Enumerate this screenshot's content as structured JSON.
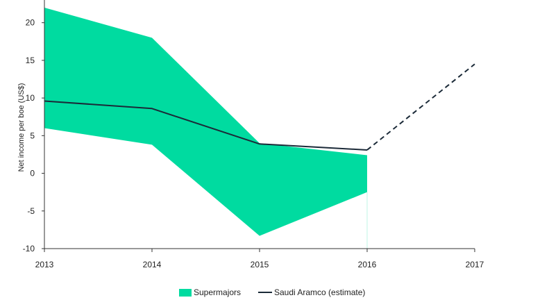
{
  "chart_data": {
    "type": "area",
    "title": "",
    "xlabel": "",
    "ylabel": "Net income per boe (US$)",
    "x": [
      "2013",
      "2014",
      "2015",
      "2016",
      "2017"
    ],
    "xlim": [
      2013,
      2017
    ],
    "ylim": [
      -10,
      22
    ],
    "yticks": [
      -10,
      -5,
      0,
      5,
      10,
      15,
      20
    ],
    "grid": false,
    "legend": "bottom-center",
    "series": [
      {
        "name": "Supermajors",
        "kind": "range-band",
        "color": "#00dba0",
        "x": [
          2013,
          2014,
          2015,
          2016
        ],
        "upper": [
          22,
          18,
          4,
          2.4
        ],
        "lower": [
          6,
          3.8,
          -8.3,
          -2.5
        ]
      },
      {
        "name": "Saudi Aramco (estimate)",
        "kind": "line",
        "color": "#1b2a38",
        "x": [
          2013,
          2014,
          2015,
          2016
        ],
        "values": [
          9.6,
          8.6,
          3.9,
          3.1
        ],
        "projection": {
          "x": [
            2016,
            2017
          ],
          "values": [
            3.1,
            14.5
          ],
          "style": "dashed"
        }
      }
    ]
  }
}
